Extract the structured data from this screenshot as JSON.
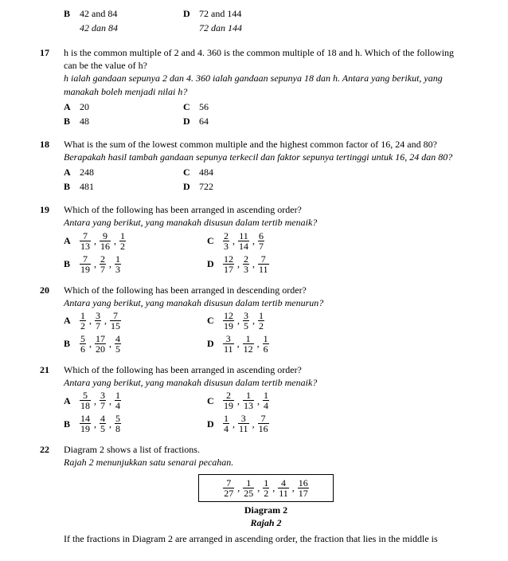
{
  "q16_tail": {
    "B_en": "42 and 84",
    "B_ms": "42 dan 84",
    "D_en": "72 and 144",
    "D_ms": "72 dan 144"
  },
  "q17": {
    "num": "17",
    "text_en": "h is the common multiple of 2 and 4. 360 is the common multiple of 18 and h. Which of the following can be the value of h?",
    "text_ms": "h ialah gandaan sepunya 2 dan 4. 360 ialah gandaan sepunya 18 dan h. Antara yang berikut, yang manakah boleh menjadi nilai h?",
    "A": "20",
    "B": "48",
    "C": "56",
    "D": "64"
  },
  "q18": {
    "num": "18",
    "text_en": "What is the sum of the lowest common multiple and the highest common factor of 16, 24 and 80?",
    "text_ms": "Berapakah hasil tambah gandaan sepunya terkecil dan faktor sepunya tertinggi untuk 16, 24 dan 80?",
    "A": "248",
    "B": "481",
    "C": "484",
    "D": "722"
  },
  "q19": {
    "num": "19",
    "text_en": "Which of the following has been arranged in ascending order?",
    "text_ms": "Antara yang berikut, yang manakah disusun dalam tertib menaik?",
    "A": [
      [
        "7",
        "13"
      ],
      [
        "9",
        "16"
      ],
      [
        "1",
        "2"
      ]
    ],
    "B": [
      [
        "7",
        "19"
      ],
      [
        "2",
        "7"
      ],
      [
        "1",
        "3"
      ]
    ],
    "C": [
      [
        "2",
        "3"
      ],
      [
        "11",
        "14"
      ],
      [
        "6",
        "7"
      ]
    ],
    "D": [
      [
        "12",
        "17"
      ],
      [
        "2",
        "3"
      ],
      [
        "7",
        "11"
      ]
    ]
  },
  "q20": {
    "num": "20",
    "text_en": "Which of the following has been arranged in descending order?",
    "text_ms": "Antara yang berikut, yang manakah disusun dalam tertib menurun?",
    "A": [
      [
        "1",
        "2"
      ],
      [
        "3",
        "7"
      ],
      [
        "7",
        "15"
      ]
    ],
    "B": [
      [
        "5",
        "6"
      ],
      [
        "17",
        "20"
      ],
      [
        "4",
        "5"
      ]
    ],
    "C": [
      [
        "12",
        "19"
      ],
      [
        "3",
        "5"
      ],
      [
        "1",
        "2"
      ]
    ],
    "D": [
      [
        "3",
        "11"
      ],
      [
        "1",
        "12"
      ],
      [
        "1",
        "6"
      ]
    ]
  },
  "q21": {
    "num": "21",
    "text_en": "Which of the following has been arranged in ascending order?",
    "text_ms": "Antara yang berikut, yang manakah disusun dalam tertib menaik?",
    "A": [
      [
        "5",
        "18"
      ],
      [
        "3",
        "7"
      ],
      [
        "1",
        "4"
      ]
    ],
    "B": [
      [
        "14",
        "19"
      ],
      [
        "4",
        "5"
      ],
      [
        "5",
        "8"
      ]
    ],
    "C": [
      [
        "2",
        "19"
      ],
      [
        "1",
        "13"
      ],
      [
        "1",
        "4"
      ]
    ],
    "D": [
      [
        "1",
        "4"
      ],
      [
        "3",
        "11"
      ],
      [
        "7",
        "16"
      ]
    ]
  },
  "q22": {
    "num": "22",
    "text_en": "Diagram 2 shows a list of fractions.",
    "text_ms": "Rajah 2 menunjukkan satu senarai pecahan.",
    "diagram": [
      [
        "7",
        "27"
      ],
      [
        "1",
        "25"
      ],
      [
        "1",
        "2"
      ],
      [
        "4",
        "11"
      ],
      [
        "16",
        "17"
      ]
    ],
    "caption_en": "Diagram 2",
    "caption_ms": "Rajah 2",
    "tail_en": "If the fractions in Diagram 2 are arranged in ascending order, the fraction that lies in the middle is"
  },
  "labels": {
    "A": "A",
    "B": "B",
    "C": "C",
    "D": "D"
  }
}
